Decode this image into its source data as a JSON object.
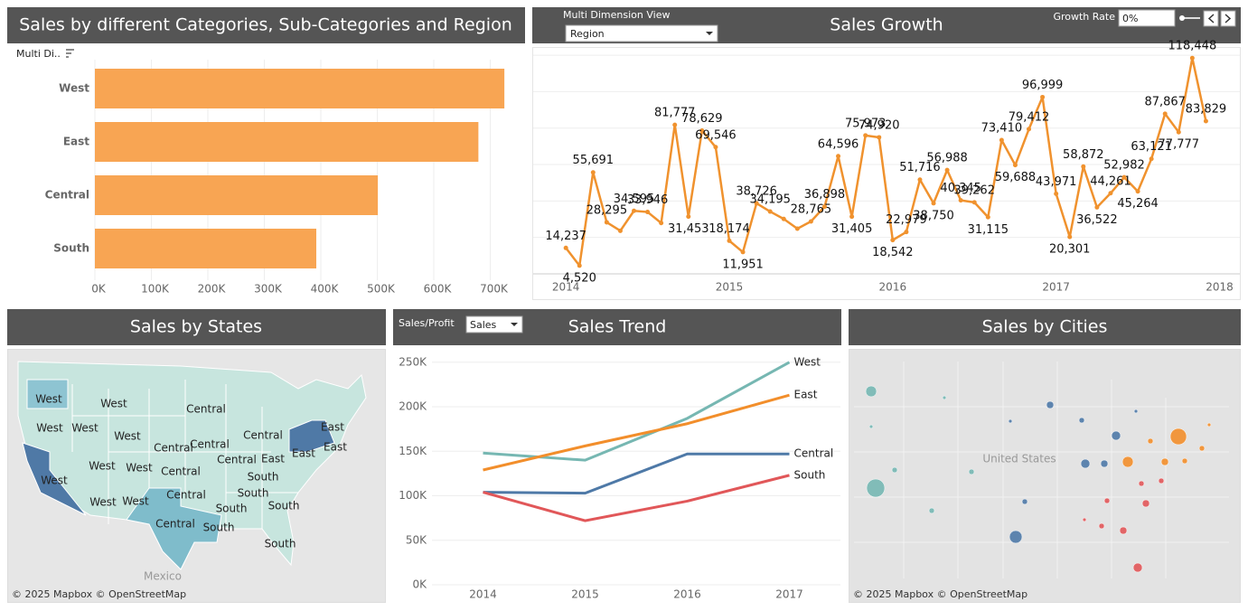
{
  "chart_data": [
    {
      "type": "bar",
      "orientation": "horizontal",
      "title": "Sales by different Categories, Sub-Categories and Region",
      "categories": [
        "West",
        "East",
        "Central",
        "South"
      ],
      "values": [
        725000,
        679000,
        501000,
        392000
      ],
      "color": "#f8a553",
      "xlim": [
        0,
        760000
      ],
      "xticks": [
        {
          "value": 0,
          "label": "0K"
        },
        {
          "value": 100000,
          "label": "100K"
        },
        {
          "value": 200000,
          "label": "200K"
        },
        {
          "value": 300000,
          "label": "300K"
        },
        {
          "value": 400000,
          "label": "400K"
        },
        {
          "value": 500000,
          "label": "500K"
        },
        {
          "value": 600000,
          "label": "600K"
        },
        {
          "value": 700000,
          "label": "700K"
        }
      ],
      "grid": true
    },
    {
      "type": "line",
      "title": "Sales Growth",
      "color": "#f0922e",
      "values": [
        14237,
        4520,
        55691,
        28295,
        23648,
        34595,
        33946,
        27909,
        81777,
        31453,
        78629,
        69546,
        18174,
        11951,
        38726,
        34195,
        30132,
        24797,
        28765,
        36898,
        64596,
        31405,
        75973,
        74920,
        18542,
        22979,
        51716,
        38750,
        56988,
        40345,
        39262,
        31115,
        73410,
        59688,
        79412,
        96999,
        43971,
        20301,
        58872,
        36522,
        44261,
        52982,
        45264,
        63121,
        87867,
        77777,
        118448,
        83829
      ],
      "value_labels": [
        "14,237",
        "4,520",
        "55,691",
        "28,295",
        null,
        "34,595",
        "33,946",
        null,
        "81,777",
        "31,453",
        "78,629",
        "69,546",
        "18,174",
        "11,951",
        "38,726",
        "34,195",
        null,
        null,
        "28,765",
        "36,898",
        "64,596",
        "31,405",
        "75,973",
        "74,920",
        "18,542",
        "22,979",
        "51,716",
        "38,750",
        "56,988",
        "40,345",
        "39,262",
        "31,115",
        "73,410",
        "59,688",
        "79,412",
        "96,999",
        "43,971",
        "20,301",
        "58,872",
        "36,522",
        "44,261",
        "52,982",
        "45,264",
        "63,121",
        "87,867",
        "77,777",
        "118,448",
        "83,829"
      ],
      "xlim": [
        2013.8,
        2018.13
      ],
      "xticks": [
        2014,
        2015,
        2016,
        2017,
        2018
      ],
      "ylim": [
        0,
        124000
      ],
      "yticks": [
        0,
        20000,
        40000,
        60000,
        80000,
        100000,
        120000
      ],
      "grid": true
    },
    {
      "type": "line",
      "title": "Sales Trend",
      "x": [
        2014,
        2015,
        2016,
        2017
      ],
      "series": [
        {
          "name": "West",
          "color": "#76b7b2",
          "values": [
            148000,
            140000,
            187000,
            250000
          ]
        },
        {
          "name": "East",
          "color": "#f28e2b",
          "values": [
            129000,
            156000,
            181000,
            213000
          ]
        },
        {
          "name": "Central",
          "color": "#4e79a7",
          "values": [
            104000,
            103000,
            147000,
            147000
          ]
        },
        {
          "name": "South",
          "color": "#e15759",
          "values": [
            104000,
            72000,
            94000,
            123000
          ]
        }
      ],
      "xlim": [
        2013.5,
        2017.5
      ],
      "xticks": [
        2014,
        2015,
        2016,
        2017
      ],
      "ylim": [
        -3000,
        264000
      ],
      "yticks": [
        {
          "value": 0,
          "label": "0K"
        },
        {
          "value": 50000,
          "label": "50K"
        },
        {
          "value": 100000,
          "label": "100K"
        },
        {
          "value": 150000,
          "label": "150K"
        },
        {
          "value": 200000,
          "label": "200K"
        },
        {
          "value": 250000,
          "label": "250K"
        }
      ],
      "grid": true
    }
  ],
  "controls": {
    "sort_label": "Multi Di..",
    "dimension_label": "Multi Dimension View",
    "dimension_value": "Region",
    "growth_label": "Growth Rate",
    "growth_value": "0%",
    "measure_label": "Sales/Profit",
    "measure_value": "Sales"
  },
  "state_map": {
    "title": "Sales by States",
    "labels": [
      "West",
      "West",
      "West",
      "West",
      "West",
      "West",
      "West",
      "West",
      "West",
      "West",
      "Central",
      "Central",
      "Central",
      "Central",
      "Central",
      "Central",
      "Central",
      "Central",
      "East",
      "East",
      "East",
      "East",
      "South",
      "South",
      "South",
      "South",
      "South",
      "South"
    ],
    "place_label": "Mexico",
    "attribution": "© 2025 Mapbox © OpenStreetMap"
  },
  "city_map": {
    "title": "Sales by Cities",
    "place_label": "United States",
    "attribution": "© 2025 Mapbox © OpenStreetMap"
  }
}
